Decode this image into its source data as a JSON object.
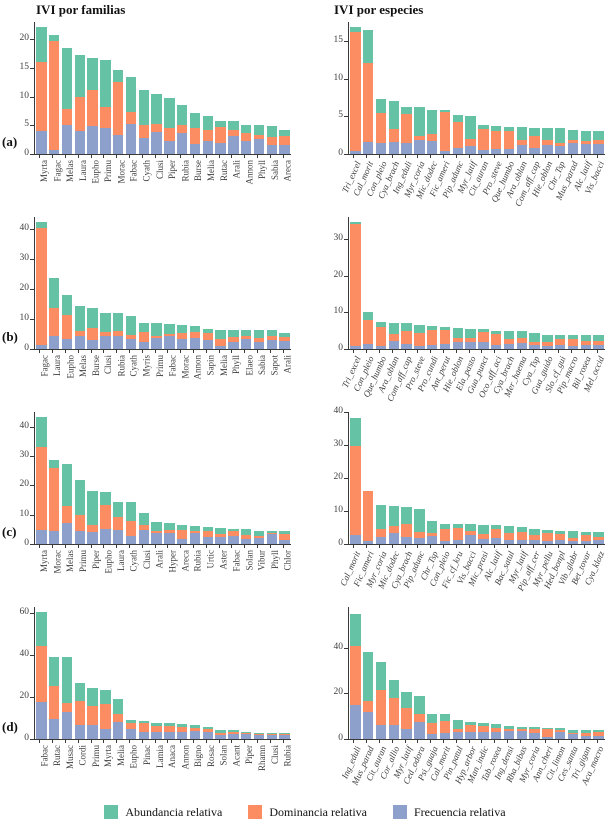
{
  "legend": [
    {
      "label": "Abundancia relativa",
      "color": "#66C2A5"
    },
    {
      "label": "Dominancia relativa",
      "color": "#FC8D62"
    },
    {
      "label": "Frecuencia relativa",
      "color": "#8DA0CB"
    }
  ],
  "colors": {
    "abundancia": "#66C2A5",
    "dominancia": "#FC8D62",
    "frecuencia": "#8DA0CB",
    "axis": "#3a3a3a"
  },
  "chart_data": [
    {
      "type": "bar",
      "stacked": true,
      "panel": "a",
      "panel_label": "(a)",
      "group": "familias",
      "title": "IVI por familias",
      "label_style": "vertical",
      "ylim": [
        0,
        23
      ],
      "yticks": [
        0,
        5,
        10,
        15,
        20
      ],
      "categories": [
        "Myrta",
        "Fagac",
        "Melas",
        "Laura",
        "Eupho",
        "Primu",
        "Morac",
        "Fabac",
        "Cyath",
        "Clusi",
        "Piper",
        "Rubia",
        "Burse",
        "Melia",
        "Rutac",
        "Arali",
        "Annon",
        "Phyll",
        "Sabia",
        "Areca"
      ],
      "series": [
        {
          "name": "Frecuencia relativa",
          "color": "#8DA0CB",
          "values": [
            4.0,
            0.7,
            5.0,
            4.0,
            4.9,
            4.6,
            3.4,
            5.3,
            2.8,
            3.9,
            2.3,
            3.7,
            1.7,
            2.2,
            2.0,
            3.1,
            2.3,
            2.7,
            1.6,
            1.6
          ]
        },
        {
          "name": "Dominancia relativa",
          "color": "#FC8D62",
          "values": [
            12.1,
            19.0,
            2.8,
            6.0,
            6.3,
            3.6,
            9.2,
            2.0,
            2.2,
            1.4,
            2.2,
            1.3,
            2.9,
            2.0,
            2.7,
            1.0,
            1.3,
            0.7,
            1.3,
            1.6
          ]
        },
        {
          "name": "Abundancia relativa",
          "color": "#66C2A5",
          "values": [
            6.0,
            1.0,
            10.6,
            7.2,
            5.5,
            8.1,
            2.0,
            6.1,
            6.2,
            5.1,
            5.3,
            3.5,
            2.6,
            2.4,
            1.0,
            1.7,
            1.5,
            1.6,
            1.9,
            1.0
          ]
        }
      ]
    },
    {
      "type": "bar",
      "stacked": true,
      "panel": "a",
      "panel_label": "(a)",
      "group": "especies",
      "title": "IVI por especies",
      "label_style": "angled-italic",
      "ylim": [
        0,
        17.5
      ],
      "yticks": [
        0,
        5,
        10,
        15
      ],
      "categories": [
        "Tri_excel",
        "Cal_morit",
        "Con_pleio",
        "Cya_brach",
        "Ing_eduli",
        "Myr_coria",
        "Mic_dodec",
        "Fic_ameri",
        "Pip_adunc",
        "Myr_latif",
        "Cit_auran",
        "Pro_steve",
        "Que_humbo",
        "Ara_oblan",
        "Com_aff_cap",
        "Hie_oblon",
        "Chr_Tsp",
        "Mus_parad",
        "Alc_latif",
        "Vis_bacci"
      ],
      "series": [
        {
          "name": "Frecuencia relativa",
          "color": "#8DA0CB",
          "values": [
            0.4,
            1.6,
            1.5,
            1.6,
            1.4,
            1.8,
            1.7,
            0.4,
            0.8,
            1.1,
            0.5,
            0.7,
            0.6,
            1.2,
            0.8,
            1.2,
            1.0,
            1.4,
            1.3,
            1.3
          ]
        },
        {
          "name": "Dominancia relativa",
          "color": "#FC8D62",
          "values": [
            15.8,
            10.5,
            3.9,
            1.7,
            3.9,
            0.6,
            0.9,
            5.2,
            3.4,
            0.9,
            2.8,
            2.3,
            2.4,
            0.7,
            1.6,
            0.6,
            0.5,
            0.5,
            0.4,
            0.5
          ]
        },
        {
          "name": "Abundancia relativa",
          "color": "#66C2A5",
          "values": [
            0.6,
            4.4,
            1.9,
            3.7,
            1.0,
            3.8,
            3.3,
            0.2,
            1.0,
            3.0,
            0.6,
            0.7,
            0.6,
            1.7,
            1.1,
            1.7,
            1.9,
            1.3,
            1.4,
            1.3
          ]
        }
      ]
    },
    {
      "type": "bar",
      "stacked": true,
      "panel": "b",
      "panel_label": "(b)",
      "group": "familias",
      "title": "",
      "label_style": "vertical",
      "ylim": [
        0,
        44
      ],
      "yticks": [
        0,
        10,
        20,
        30,
        40
      ],
      "categories": [
        "Fagac",
        "Laura",
        "Eupho",
        "Melas",
        "Burse",
        "Clusi",
        "Rubia",
        "Cyath",
        "Myris",
        "Primu",
        "Fabac",
        "Morac",
        "Annon",
        "Sapin",
        "Melia",
        "Phyll",
        "Elaeo",
        "Sabia",
        "Sapot",
        "Arali"
      ],
      "series": [
        {
          "name": "Frecuencia relativa",
          "color": "#8DA0CB",
          "values": [
            1.3,
            4.2,
            3.4,
            4.3,
            3.0,
            4.2,
            4.3,
            3.2,
            2.4,
            3.6,
            4.2,
            3.2,
            3.6,
            3.0,
            1.0,
            2.5,
            3.3,
            2.2,
            3.0,
            2.8
          ]
        },
        {
          "name": "Dominancia relativa",
          "color": "#FC8D62",
          "values": [
            39.2,
            9.6,
            8.1,
            1.6,
            4.0,
            1.5,
            1.7,
            1.6,
            3.3,
            0.9,
            0.8,
            2.0,
            2.0,
            2.5,
            2.2,
            1.5,
            1.0,
            1.4,
            1.4,
            1.2
          ]
        },
        {
          "name": "Abundancia relativa",
          "color": "#66C2A5",
          "values": [
            1.8,
            10.0,
            6.5,
            8.4,
            6.8,
            6.4,
            6.1,
            6.2,
            3.1,
            4.2,
            3.4,
            2.9,
            2.2,
            1.3,
            3.3,
            2.4,
            2.0,
            2.7,
            1.8,
            1.4
          ]
        }
      ]
    },
    {
      "type": "bar",
      "stacked": true,
      "panel": "b",
      "panel_label": "(b)",
      "group": "especies",
      "title": "",
      "label_style": "angled-italic",
      "ylim": [
        0,
        36
      ],
      "yticks": [
        0,
        10,
        20,
        30
      ],
      "categories": [
        "Tri_excel",
        "Con_pleio",
        "Que_humbo",
        "Ara_oblan",
        "Com_aff_cap",
        "Pro_steve",
        "Pro_cundi",
        "Ant_perut",
        "Hie_oblon",
        "Ela_pasto",
        "Gua_punct",
        "Oco_aff_aci",
        "Cya_brach",
        "Mer_haema",
        "Cya_Tsp",
        "Gua_guido",
        "Slo_cf_gui",
        "Pip_macro",
        "Bil_rosea",
        "Mel_occid"
      ],
      "series": [
        {
          "name": "Frecuencia relativa",
          "color": "#8DA0CB",
          "values": [
            0.7,
            1.5,
            0.9,
            2.3,
            1.3,
            0.9,
            1.2,
            1.4,
            1.8,
            1.9,
            2.0,
            1.2,
            1.5,
            1.6,
            1.1,
            0.9,
            1.0,
            0.8,
            1.0,
            1.1
          ]
        },
        {
          "name": "Dominancia relativa",
          "color": "#FC8D62",
          "values": [
            33.4,
            6.3,
            5.0,
            1.7,
            3.5,
            3.4,
            4.0,
            3.9,
            1.1,
            1.0,
            2.6,
            2.8,
            1.1,
            1.4,
            0.8,
            0.9,
            1.7,
            1.9,
            1.1,
            1.2
          ]
        },
        {
          "name": "Abundancia relativa",
          "color": "#66C2A5",
          "values": [
            0.5,
            2.2,
            1.6,
            3.2,
            2.3,
            2.2,
            1.1,
            0.7,
            2.8,
            2.7,
            0.9,
            1.0,
            2.4,
            1.8,
            2.4,
            1.9,
            1.0,
            1.0,
            1.6,
            1.4
          ]
        }
      ]
    },
    {
      "type": "bar",
      "stacked": true,
      "panel": "c",
      "panel_label": "(c)",
      "group": "familias",
      "title": "",
      "label_style": "vertical",
      "ylim": [
        0,
        45
      ],
      "yticks": [
        0,
        10,
        20,
        30,
        40
      ],
      "categories": [
        "Myrta",
        "Morac",
        "Melas",
        "Primu",
        "Piper",
        "Eupho",
        "Laura",
        "Cyath",
        "Clusi",
        "Arali",
        "Hyper",
        "Areca",
        "Rubia",
        "Urtic",
        "Aster",
        "Fabac",
        "Solan",
        "Vibur",
        "Phyll",
        "Chlor"
      ],
      "series": [
        {
          "name": "Frecuencia relativa",
          "color": "#8DA0CB",
          "values": [
            4.8,
            4.5,
            7.0,
            4.3,
            4.0,
            5.0,
            4.8,
            2.9,
            4.9,
            3.7,
            3.9,
            1.8,
            3.7,
            2.3,
            2.5,
            2.7,
            1.8,
            2.1,
            3.3,
            1.4
          ]
        },
        {
          "name": "Dominancia relativa",
          "color": "#FC8D62",
          "values": [
            28.2,
            21.5,
            5.8,
            5.7,
            2.6,
            8.3,
            4.5,
            4.8,
            1.5,
            0.8,
            0.9,
            3.0,
            0.7,
            2.0,
            1.0,
            1.9,
            1.4,
            0.7,
            0.5,
            1.9
          ]
        },
        {
          "name": "Abundancia relativa",
          "color": "#66C2A5",
          "values": [
            10.2,
            2.6,
            14.4,
            11.9,
            11.4,
            4.5,
            5.0,
            6.6,
            4.3,
            2.9,
            2.3,
            1.7,
            1.6,
            1.6,
            2.0,
            0.6,
            1.9,
            1.8,
            0.6,
            1.1
          ]
        }
      ]
    },
    {
      "type": "bar",
      "stacked": true,
      "panel": "c",
      "panel_label": "(c)",
      "group": "especies",
      "title": "",
      "label_style": "angled-italic",
      "ylim": [
        0,
        40
      ],
      "yticks": [
        0,
        10,
        20,
        30,
        40
      ],
      "categories": [
        "Cal_morit",
        "Fic_ameri",
        "Myr_coria",
        "Mic_dodec",
        "Cya_brach",
        "Pip_adunc",
        "Chr_Tsp",
        "Con_pleio",
        "Fic_cf_kru",
        "Vis_bacci",
        "Mic_prasi",
        "Alc_latif",
        "Bac_satul",
        "Myr_latif",
        "Pip_aff_cer",
        "Myr_pellu",
        "Hed_bonpl",
        "Vib_glabr",
        "Bet_tovar",
        "Cya_klotz"
      ],
      "series": [
        {
          "name": "Frecuencia relativa",
          "color": "#8DA0CB",
          "values": [
            2.8,
            0.9,
            2.1,
            3.3,
            2.0,
            1.7,
            2.3,
            1.0,
            1.3,
            2.8,
            1.6,
            1.7,
            1.2,
            1.2,
            1.2,
            0.9,
            1.1,
            1.0,
            1.0,
            1.3
          ]
        },
        {
          "name": "Dominancia relativa",
          "color": "#FC8D62",
          "values": [
            27.0,
            15.2,
            2.5,
            2.2,
            4.2,
            1.8,
            1.1,
            3.5,
            3.7,
            1.1,
            1.5,
            2.7,
            2.0,
            2.3,
            1.4,
            2.3,
            1.9,
            0.8,
            1.7,
            0.9
          ]
        },
        {
          "name": "Abundancia relativa",
          "color": "#66C2A5",
          "values": [
            8.4,
            0.1,
            7.3,
            6.1,
            4.9,
            7.2,
            3.6,
            1.5,
            1.0,
            2.1,
            2.7,
            1.3,
            2.3,
            1.7,
            1.9,
            1.0,
            1.0,
            2.2,
            1.0,
            1.3
          ]
        }
      ]
    },
    {
      "type": "bar",
      "stacked": true,
      "panel": "d",
      "panel_label": "(d)",
      "group": "familias",
      "title": "",
      "label_style": "vertical",
      "ylim": [
        0,
        63
      ],
      "yticks": [
        0,
        20,
        40,
        60
      ],
      "categories": [
        "Fabac",
        "Rutac",
        "Musac",
        "Cordi",
        "Primu",
        "Myrta",
        "Melia",
        "Eupho",
        "Pinac",
        "Lamia",
        "Anaca",
        "Annon",
        "Bigno",
        "Rosac",
        "Solan",
        "Acant",
        "Piper",
        "Rhamn",
        "Clusi",
        "Rubia"
      ],
      "series": [
        {
          "name": "Frecuencia relativa",
          "color": "#8DA0CB",
          "values": [
            17.5,
            9.5,
            13.0,
            6.5,
            6.5,
            4.8,
            8.0,
            4.8,
            3.2,
            3.5,
            3.5,
            3.5,
            3.8,
            3.3,
            2.0,
            2.2,
            2.2,
            2.0,
            1.9,
            1.8
          ]
        },
        {
          "name": "Dominancia relativa",
          "color": "#FC8D62",
          "values": [
            27.0,
            16.0,
            4.0,
            11.5,
            9.5,
            11.7,
            4.0,
            2.7,
            4.6,
            2.5,
            2.5,
            2.3,
            1.7,
            1.5,
            1.0,
            1.3,
            0.8,
            0.6,
            0.4,
            0.4
          ]
        },
        {
          "name": "Abundancia relativa",
          "color": "#66C2A5",
          "values": [
            16.3,
            13.5,
            22.0,
            8.8,
            8.5,
            6.8,
            7.2,
            1.5,
            0.7,
            1.8,
            1.7,
            1.5,
            1.3,
            0.9,
            1.2,
            0.6,
            0.5,
            0.5,
            0.5,
            0.6
          ]
        }
      ]
    },
    {
      "type": "bar",
      "stacked": true,
      "panel": "d",
      "panel_label": "(d)",
      "group": "especies",
      "title": "",
      "label_style": "angled-italic",
      "ylim": [
        0,
        58
      ],
      "yticks": [
        0,
        20,
        40
      ],
      "categories": [
        "Ing_eduli",
        "Mus_parad",
        "Cit_auran",
        "Cor_allio",
        "Myr_latif",
        "Ced_odora",
        "Psi_guaja",
        "Cal_morit",
        "Pin_patul",
        "Hyp_arbor",
        "Man_indic",
        "Tab_rosea",
        "Ing_densi",
        "Rha_bibas",
        "Myr_coria",
        "Ann_cheri",
        "Cit_limon",
        "Ces_santa",
        "Tri_gigan",
        "Aca_macro"
      ],
      "series": [
        {
          "name": "Frecuencia relativa",
          "color": "#8DA0CB",
          "values": [
            15.0,
            12.0,
            6.3,
            6.3,
            4.5,
            7.5,
            2.3,
            2.5,
            3.0,
            3.0,
            3.2,
            3.2,
            3.4,
            3.4,
            2.8,
            0.9,
            3.3,
            2.0,
            1.3,
            1.3
          ]
        },
        {
          "name": "Dominancia relativa",
          "color": "#FC8D62",
          "values": [
            26.0,
            4.5,
            15.2,
            11.7,
            9.3,
            3.5,
            4.9,
            5.5,
            1.2,
            3.3,
            2.3,
            1.6,
            1.2,
            1.0,
            1.4,
            3.4,
            0.7,
            0.8,
            1.2,
            1.7
          ]
        },
        {
          "name": "Abundancia relativa",
          "color": "#66C2A5",
          "values": [
            14.0,
            21.7,
            12.5,
            8.0,
            6.7,
            7.7,
            4.0,
            3.0,
            4.3,
            1.3,
            1.5,
            1.9,
            1.2,
            1.1,
            1.0,
            0.7,
            0.7,
            1.1,
            1.3,
            0.8
          ]
        }
      ]
    }
  ]
}
